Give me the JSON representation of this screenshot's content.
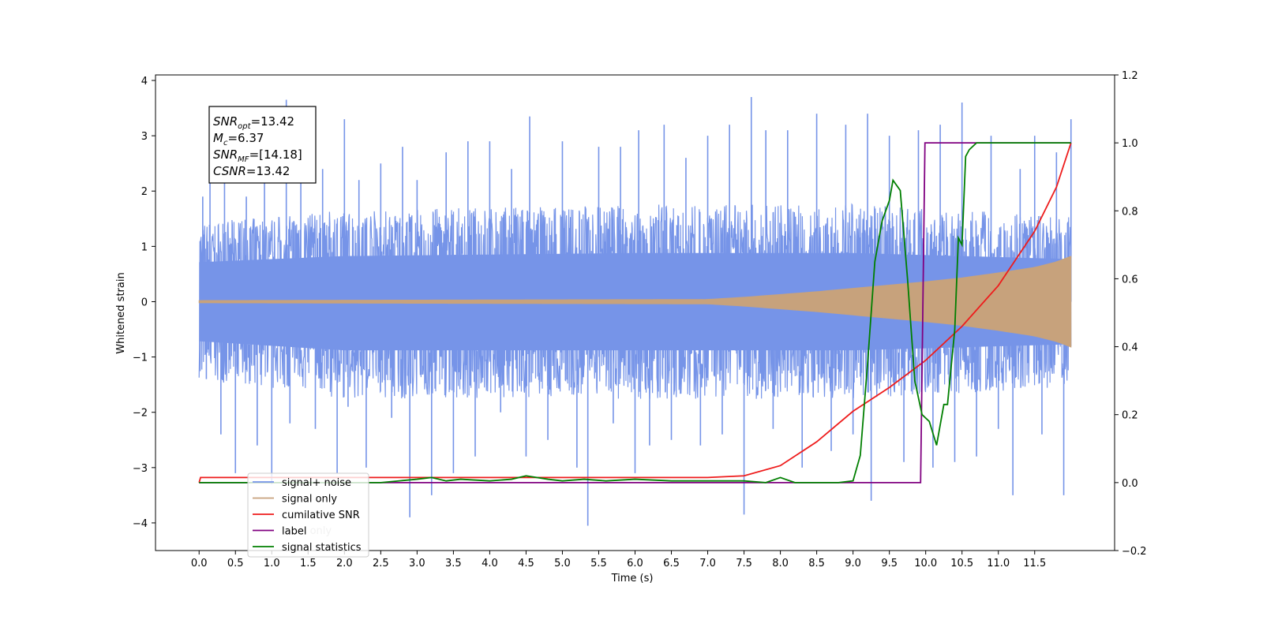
{
  "chart_data": {
    "type": "line",
    "xlabel": "Time (s)",
    "ylabel": "Whitened strain",
    "xlim": [
      -0.6,
      12.6
    ],
    "ylim": [
      -4.5,
      4.1
    ],
    "y2lim": [
      -0.2,
      1.2
    ],
    "x_ticks": [
      0.0,
      0.5,
      1.0,
      1.5,
      2.0,
      2.5,
      3.0,
      3.5,
      4.0,
      4.5,
      5.0,
      5.5,
      6.0,
      6.5,
      7.0,
      7.5,
      8.0,
      8.5,
      9.0,
      9.5,
      10.0,
      10.5,
      11.0,
      11.5
    ],
    "x_tick_labels": [
      "0.0",
      "0.5",
      "1.0",
      "1.5",
      "2.0",
      "2.5",
      "3.0",
      "3.5",
      "4.0",
      "4.5",
      "5.0",
      "5.5",
      "6.0",
      "6.5",
      "7.0",
      "7.5",
      "8.0",
      "8.5",
      "9.0",
      "9.5",
      "10.0",
      "10.5",
      "11.0",
      "11.5"
    ],
    "y_ticks": [
      4,
      3,
      2,
      1,
      0,
      -1,
      -2,
      -3,
      -4
    ],
    "y_tick_labels": [
      "4",
      "3",
      "2",
      "1",
      "0",
      "−1",
      "−2",
      "−3",
      "−4"
    ],
    "y2_ticks": [
      1.2,
      1.0,
      0.8,
      0.6,
      0.4,
      0.2,
      0.0,
      -0.2
    ],
    "y2_tick_labels": [
      "1.2",
      "1.0",
      "0.8",
      "0.6",
      "0.4",
      "0.2",
      "0.0",
      "−0.2"
    ],
    "legend_position": "bottom-left",
    "annotation": [
      {
        "base": "SNR",
        "sub": "opt",
        "value": "=13.42"
      },
      {
        "base": "M",
        "sub": "c",
        "value": "=6.37"
      },
      {
        "base": "SNR",
        "sub": "MF",
        "value": "=[14.18]"
      },
      {
        "base": "CSNR",
        "sub": "",
        "value": "=13.42"
      }
    ],
    "series": [
      {
        "name": "signal+ noise",
        "axis": "left",
        "color": "#7694e8",
        "style": "band",
        "x_range": [
          0.0,
          12.0
        ],
        "typical_envelope": [
          [
            0.0,
            -1.3,
            1.3
          ],
          [
            2.0,
            -1.6,
            1.5
          ],
          [
            6.0,
            -1.6,
            1.6
          ],
          [
            9.0,
            -1.6,
            1.6
          ],
          [
            12.0,
            -1.4,
            1.4
          ]
        ],
        "spikes": [
          [
            0.05,
            1.9
          ],
          [
            0.1,
            -1.4
          ],
          [
            0.15,
            2.3
          ],
          [
            0.3,
            -2.4
          ],
          [
            0.35,
            2.6
          ],
          [
            0.5,
            -3.1
          ],
          [
            0.65,
            1.9
          ],
          [
            0.8,
            -2.6
          ],
          [
            0.9,
            2.9
          ],
          [
            1.0,
            -3.3
          ],
          [
            1.2,
            3.65
          ],
          [
            1.25,
            -2.2
          ],
          [
            1.4,
            2.6
          ],
          [
            1.6,
            -2.3
          ],
          [
            1.7,
            2.4
          ],
          [
            1.9,
            -3.1
          ],
          [
            2.0,
            3.3
          ],
          [
            2.05,
            -1.9
          ],
          [
            2.2,
            2.2
          ],
          [
            2.3,
            -3.0
          ],
          [
            2.5,
            2.5
          ],
          [
            2.65,
            -2.1
          ],
          [
            2.8,
            2.8
          ],
          [
            2.9,
            -3.9
          ],
          [
            3.0,
            2.2
          ],
          [
            3.2,
            -3.5
          ],
          [
            3.4,
            2.7
          ],
          [
            3.5,
            -3.1
          ],
          [
            3.7,
            2.9
          ],
          [
            3.8,
            -2.8
          ],
          [
            4.0,
            2.9
          ],
          [
            4.15,
            -2.0
          ],
          [
            4.3,
            2.4
          ],
          [
            4.5,
            -2.8
          ],
          [
            4.55,
            3.35
          ],
          [
            4.8,
            -2.5
          ],
          [
            5.0,
            2.9
          ],
          [
            5.2,
            -3.0
          ],
          [
            5.35,
            -4.05
          ],
          [
            5.5,
            2.8
          ],
          [
            5.7,
            -2.2
          ],
          [
            5.8,
            2.8
          ],
          [
            6.0,
            -3.1
          ],
          [
            6.05,
            3.1
          ],
          [
            6.2,
            -2.6
          ],
          [
            6.4,
            3.2
          ],
          [
            6.5,
            -2.5
          ],
          [
            6.7,
            2.6
          ],
          [
            6.9,
            -2.6
          ],
          [
            7.0,
            3.0
          ],
          [
            7.2,
            -2.4
          ],
          [
            7.3,
            3.2
          ],
          [
            7.5,
            -3.85
          ],
          [
            7.6,
            3.7
          ],
          [
            7.8,
            3.1
          ],
          [
            7.9,
            -2.3
          ],
          [
            8.1,
            3.1
          ],
          [
            8.3,
            -3.0
          ],
          [
            8.5,
            3.4
          ],
          [
            8.7,
            -2.7
          ],
          [
            8.9,
            3.2
          ],
          [
            9.0,
            -2.4
          ],
          [
            9.2,
            3.4
          ],
          [
            9.25,
            -3.6
          ],
          [
            9.5,
            3.0
          ],
          [
            9.7,
            -2.9
          ],
          [
            9.9,
            3.1
          ],
          [
            10.1,
            -3.0
          ],
          [
            10.2,
            3.2
          ],
          [
            10.4,
            -2.9
          ],
          [
            10.5,
            3.6
          ],
          [
            10.7,
            -2.8
          ],
          [
            10.9,
            3.0
          ],
          [
            11.0,
            -2.3
          ],
          [
            11.2,
            -3.5
          ],
          [
            11.3,
            2.4
          ],
          [
            11.5,
            3.0
          ],
          [
            11.6,
            -2.4
          ],
          [
            11.8,
            2.7
          ],
          [
            11.9,
            -3.5
          ],
          [
            12.0,
            3.3
          ]
        ]
      },
      {
        "name": "signal only",
        "axis": "left",
        "color": "#c7a27c",
        "style": "envelope",
        "x": [
          0.0,
          7.0,
          7.5,
          8.0,
          8.5,
          9.0,
          9.5,
          10.0,
          10.5,
          11.0,
          11.5,
          11.8,
          12.0
        ],
        "amplitude": [
          0.02,
          0.04,
          0.08,
          0.13,
          0.18,
          0.24,
          0.3,
          0.36,
          0.43,
          0.52,
          0.62,
          0.72,
          0.82
        ]
      },
      {
        "name": "cumilative SNR",
        "axis": "right",
        "color": "#ee1c1c",
        "x": [
          0.0,
          0.02,
          7.0,
          7.5,
          8.0,
          8.5,
          9.0,
          9.5,
          10.0,
          10.5,
          11.0,
          11.5,
          11.8,
          12.0
        ],
        "y": [
          0.0,
          0.015,
          0.015,
          0.02,
          0.05,
          0.12,
          0.21,
          0.28,
          0.36,
          0.46,
          0.58,
          0.74,
          0.87,
          1.0
        ]
      },
      {
        "name": "label",
        "axis": "right",
        "color": "#800080",
        "x": [
          0.0,
          9.93,
          9.99,
          12.0
        ],
        "y": [
          0.0,
          0.0,
          1.0,
          1.0
        ]
      },
      {
        "name": "signal statistics",
        "axis": "right",
        "color": "#007f00",
        "x": [
          0.0,
          2.5,
          3.0,
          3.2,
          3.4,
          3.6,
          4.0,
          4.3,
          4.5,
          4.8,
          5.0,
          5.3,
          5.6,
          6.0,
          6.5,
          7.0,
          7.5,
          7.8,
          8.0,
          8.2,
          8.8,
          9.0,
          9.1,
          9.2,
          9.3,
          9.4,
          9.5,
          9.55,
          9.65,
          9.75,
          9.85,
          9.95,
          10.05,
          10.15,
          10.25,
          10.3,
          10.4,
          10.45,
          10.5,
          10.55,
          10.6,
          10.7,
          10.8,
          11.0,
          11.5,
          12.0
        ],
        "y": [
          0.0,
          0.0,
          0.01,
          0.015,
          0.005,
          0.01,
          0.005,
          0.01,
          0.02,
          0.01,
          0.005,
          0.01,
          0.005,
          0.01,
          0.005,
          0.005,
          0.005,
          0.0,
          0.015,
          0.0,
          0.0,
          0.005,
          0.08,
          0.35,
          0.65,
          0.77,
          0.83,
          0.89,
          0.86,
          0.6,
          0.3,
          0.2,
          0.18,
          0.11,
          0.23,
          0.23,
          0.45,
          0.72,
          0.7,
          0.96,
          0.98,
          1.0,
          1.0,
          1.0,
          1.0,
          1.0
        ]
      }
    ],
    "legend_entries": [
      "signal+ noise",
      "signal only",
      "cumilative SNR",
      "label",
      "signal statistics"
    ],
    "legend_hidden_text": "label only"
  }
}
